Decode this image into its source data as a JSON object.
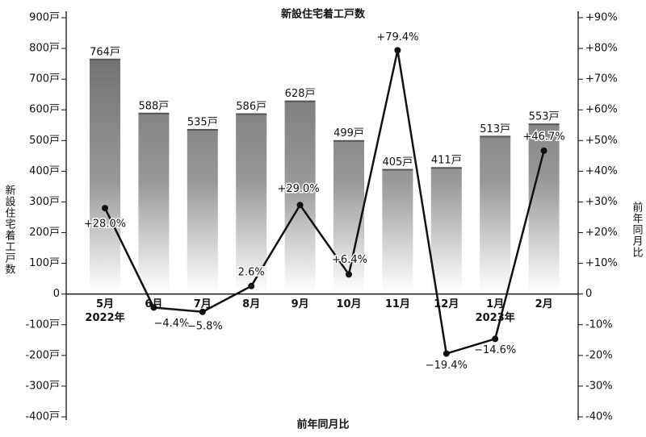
{
  "chart_data": {
    "type": "bar-line",
    "title": "新設住宅着工戸数",
    "xlabel": "前年同月比",
    "ylabel": "新設住宅着工戸数",
    "y2label": "前年同月比",
    "categories": [
      "5月",
      "6月",
      "7月",
      "8月",
      "9月",
      "10月",
      "11月",
      "12月",
      "1月",
      "2月"
    ],
    "year_labels": [
      "2022年",
      null,
      null,
      null,
      null,
      null,
      null,
      null,
      "2023年",
      null
    ],
    "series": [
      {
        "type": "bar",
        "values": [
          764,
          588,
          535,
          586,
          628,
          499,
          405,
          411,
          513,
          553
        ],
        "value_labels": [
          "764戸",
          "588戸",
          "535戸",
          "586戸",
          "628戸",
          "499戸",
          "405戸",
          "411戸",
          "513戸",
          "553戸"
        ],
        "color": "#767676"
      },
      {
        "type": "line",
        "axis": "y2",
        "values": [
          28.0,
          -4.4,
          -5.8,
          2.6,
          29.0,
          6.4,
          79.4,
          -19.4,
          -14.6,
          46.7
        ],
        "value_labels": [
          "+28.0%",
          "−4.4%",
          "−5.8%",
          "2.6%",
          "+29.0%",
          "+6.4%",
          "+79.4%",
          "−19.4%",
          "−14.6%",
          "+46.7%"
        ],
        "color": "#111111"
      }
    ],
    "ylim": [
      -400,
      900
    ],
    "yticks": [
      {
        "value": -400,
        "label": "-400戸"
      },
      {
        "value": -300,
        "label": "-300戸"
      },
      {
        "value": -200,
        "label": "-200戸"
      },
      {
        "value": -100,
        "label": "-100戸"
      },
      0,
      {
        "value": 100,
        "label": "100戸"
      },
      {
        "value": 200,
        "label": "200戸"
      },
      {
        "value": 300,
        "label": "300戸"
      },
      {
        "value": 400,
        "label": "400戸"
      },
      {
        "value": 500,
        "label": "500戸"
      },
      {
        "value": 600,
        "label": "600戸"
      },
      {
        "value": 700,
        "label": "700戸"
      },
      {
        "value": 800,
        "label": "800戸"
      },
      {
        "value": 900,
        "label": "900戸"
      }
    ],
    "y2lim": [
      -40,
      90
    ],
    "y2ticks": [
      {
        "value": -40,
        "label": "-40%"
      },
      {
        "value": -30,
        "label": "-30%"
      },
      {
        "value": -20,
        "label": "-20%"
      },
      {
        "value": -10,
        "label": "-10%"
      },
      0,
      {
        "value": 10,
        "label": "+10%"
      },
      {
        "value": 20,
        "label": "+20%"
      },
      {
        "value": 30,
        "label": "+30%"
      },
      {
        "value": 40,
        "label": "+40%"
      },
      {
        "value": 50,
        "label": "+50%"
      },
      {
        "value": 60,
        "label": "+60%"
      },
      {
        "value": 70,
        "label": "+70%"
      },
      {
        "value": 80,
        "label": "+80%"
      },
      {
        "value": 90,
        "label": "+90%"
      }
    ]
  }
}
